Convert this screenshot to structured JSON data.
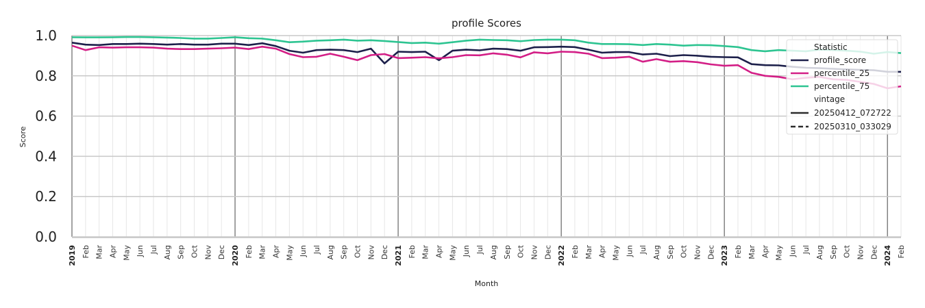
{
  "chart_data": {
    "type": "line",
    "title": "profile Scores",
    "xlabel": "Month",
    "ylabel": "Score",
    "ylim": [
      0,
      1
    ],
    "yticks": [
      "0.0",
      "0.2",
      "0.4",
      "0.6",
      "0.8",
      "1.0"
    ],
    "grid": true,
    "legend_position": "top-right",
    "x_tick_labels": [
      "2019",
      "Feb",
      "Mar",
      "Apr",
      "May",
      "Jun",
      "Jul",
      "Aug",
      "Sep",
      "Oct",
      "Nov",
      "Dec",
      "2020",
      "Feb",
      "Mar",
      "Apr",
      "May",
      "Jun",
      "Jul",
      "Aug",
      "Sep",
      "Oct",
      "Nov",
      "Dec",
      "2021",
      "Feb",
      "Mar",
      "Apr",
      "May",
      "Jun",
      "Jul",
      "Aug",
      "Sep",
      "Oct",
      "Nov",
      "Dec",
      "2022",
      "Feb",
      "Mar",
      "Apr",
      "May",
      "Jun",
      "Jul",
      "Aug",
      "Sep",
      "Oct",
      "Nov",
      "Dec",
      "2023",
      "Feb",
      "Mar",
      "Apr",
      "May",
      "Jun",
      "Jul",
      "Aug",
      "Sep",
      "Oct",
      "Nov",
      "Dec",
      "2024",
      "Feb"
    ],
    "year_labels": [
      "2019",
      "2020",
      "2021",
      "2022",
      "2023",
      "2024"
    ],
    "series": [
      {
        "name": "profile_score",
        "color": "#1c1f4a",
        "dash": "solid",
        "values": [
          0.965,
          0.955,
          0.953,
          0.958,
          0.958,
          0.96,
          0.958,
          0.955,
          0.958,
          0.955,
          0.955,
          0.96,
          0.96,
          0.953,
          0.962,
          0.948,
          0.925,
          0.915,
          0.928,
          0.93,
          0.928,
          0.918,
          0.935,
          0.862,
          0.92,
          0.918,
          0.92,
          0.878,
          0.925,
          0.93,
          0.927,
          0.935,
          0.933,
          0.925,
          0.942,
          0.943,
          0.945,
          0.943,
          0.93,
          0.915,
          0.918,
          0.918,
          0.906,
          0.91,
          0.898,
          0.903,
          0.9,
          0.895,
          0.893,
          0.892,
          0.858,
          0.853,
          0.852,
          0.845,
          0.84,
          0.838,
          0.835,
          0.832,
          0.83,
          0.828,
          0.82,
          0.82
        ]
      },
      {
        "name": "percentile_25",
        "color": "#d31e86",
        "dash": "solid",
        "values": [
          0.95,
          0.928,
          0.942,
          0.94,
          0.942,
          0.942,
          0.94,
          0.935,
          0.933,
          0.933,
          0.935,
          0.937,
          0.94,
          0.933,
          0.945,
          0.935,
          0.908,
          0.893,
          0.895,
          0.91,
          0.895,
          0.878,
          0.903,
          0.908,
          0.888,
          0.89,
          0.893,
          0.887,
          0.893,
          0.903,
          0.902,
          0.912,
          0.905,
          0.892,
          0.917,
          0.912,
          0.92,
          0.918,
          0.91,
          0.888,
          0.89,
          0.895,
          0.87,
          0.883,
          0.87,
          0.873,
          0.868,
          0.857,
          0.85,
          0.853,
          0.815,
          0.8,
          0.795,
          0.783,
          0.79,
          0.795,
          0.783,
          0.78,
          0.77,
          0.76,
          0.738,
          0.748
        ]
      },
      {
        "name": "percentile_75",
        "color": "#2dc491",
        "dash": "solid",
        "values": [
          0.992,
          0.991,
          0.991,
          0.992,
          0.993,
          0.993,
          0.992,
          0.99,
          0.988,
          0.985,
          0.985,
          0.988,
          0.992,
          0.987,
          0.985,
          0.977,
          0.967,
          0.97,
          0.975,
          0.977,
          0.98,
          0.975,
          0.977,
          0.973,
          0.968,
          0.963,
          0.965,
          0.96,
          0.967,
          0.975,
          0.98,
          0.978,
          0.977,
          0.972,
          0.978,
          0.98,
          0.98,
          0.977,
          0.965,
          0.958,
          0.958,
          0.957,
          0.953,
          0.958,
          0.955,
          0.95,
          0.953,
          0.952,
          0.948,
          0.943,
          0.928,
          0.922,
          0.928,
          0.925,
          0.922,
          0.93,
          0.928,
          0.925,
          0.92,
          0.91,
          0.918,
          0.913
        ]
      }
    ],
    "legend": {
      "statistic_header": "Statistic",
      "statistic_entries": [
        {
          "label": "profile_score",
          "color": "#1c1f4a"
        },
        {
          "label": "percentile_25",
          "color": "#d31e86"
        },
        {
          "label": "percentile_75",
          "color": "#2dc491"
        }
      ],
      "vintage_header": "vintage",
      "vintage_entries": [
        {
          "label": "20250412_072722",
          "dash": "solid"
        },
        {
          "label": "20250310_033029",
          "dash": "dashed"
        }
      ]
    }
  }
}
